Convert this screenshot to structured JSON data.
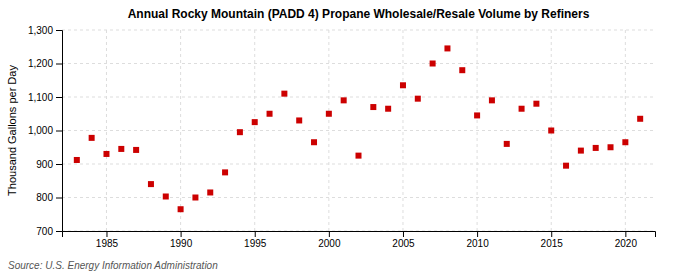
{
  "chart_data": {
    "type": "scatter",
    "title": "Annual Rocky Mountain (PADD 4) Propane Wholesale/Resale Volume by Refiners",
    "ylabel": "Thousand Gallons per Day",
    "source": "Source: U.S. Energy Information Administration",
    "x": [
      1983,
      1984,
      1985,
      1986,
      1987,
      1988,
      1989,
      1990,
      1991,
      1992,
      1993,
      1994,
      1995,
      1996,
      1997,
      1998,
      1999,
      2000,
      2001,
      2002,
      2003,
      2004,
      2005,
      2006,
      2007,
      2008,
      2009,
      2010,
      2011,
      2012,
      2013,
      2014,
      2015,
      2016,
      2017,
      2018,
      2019,
      2020,
      2021
    ],
    "values": [
      912,
      978,
      930,
      945,
      942,
      840,
      803,
      765,
      800,
      815,
      875,
      995,
      1025,
      1050,
      1110,
      1030,
      965,
      1050,
      1090,
      925,
      1070,
      1065,
      1135,
      1095,
      1200,
      1245,
      1180,
      1045,
      1090,
      960,
      1065,
      1080,
      1000,
      895,
      940,
      948,
      950,
      965,
      1035
    ],
    "color": "#cc0000",
    "marker": "square",
    "xlim": [
      1982,
      2022
    ],
    "xticks": [
      1985,
      1990,
      1995,
      2000,
      2005,
      2010,
      2015,
      2020
    ],
    "ylim": [
      700,
      1300
    ],
    "yticks": [
      700,
      800,
      900,
      {
        "value": 1000,
        "label": "1,000"
      },
      {
        "value": 1100,
        "label": "1,100"
      },
      {
        "value": 1200,
        "label": "1,200"
      },
      {
        "value": 1300,
        "label": "1,300"
      }
    ],
    "grid": true
  }
}
